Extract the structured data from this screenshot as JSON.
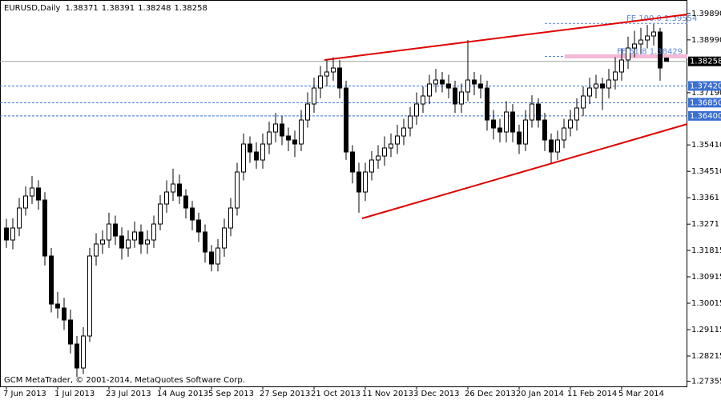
{
  "chart_data": {
    "type": "candlestick",
    "title": "EURUSD,Daily",
    "footer": "GCM MetaTrader, © 2001-2014, MetaQuotes Software Corp.",
    "open": [
      1.32578,
      1.32169,
      1.32578,
      1.3326,
      1.33669,
      1.33942,
      1.33532,
      1.31624,
      1.29987,
      1.29851,
      1.29442,
      1.28624,
      1.27806,
      1.28897,
      1.31624,
      1.32033,
      1.32169,
      1.32714,
      1.32305,
      1.31896,
      1.32169,
      1.32442,
      1.32033,
      1.32169,
      1.32714,
      1.33396,
      1.33805,
      1.34078,
      1.33669,
      1.3326,
      1.32851,
      1.32442,
      1.3176,
      1.31351,
      1.31896,
      1.32578,
      1.3326,
      1.34487,
      1.35441,
      1.35169,
      1.34896,
      1.35441,
      1.3585,
      1.36123,
      1.35714,
      1.35578,
      1.35441,
      1.36259,
      1.36805,
      1.3735,
      1.37759,
      1.37896,
      1.38032,
      1.3735,
      1.35169,
      1.34487,
      1.33805,
      1.34487,
      1.34896,
      1.35032,
      1.35305,
      1.35441,
      1.35714,
      1.35987,
      1.36396,
      1.36805,
      1.37078,
      1.37487,
      1.37623,
      1.37487,
      1.3735,
      1.36805,
      1.37214,
      1.37623,
      1.37487,
      1.3735,
      1.36259,
      1.35987,
      1.3585,
      1.36532,
      1.3585,
      1.35441,
      1.36259,
      1.36805,
      1.36259,
      1.35578,
      1.35169,
      1.35578,
      1.35987,
      1.36259,
      1.36669,
      1.37078,
      1.3735,
      1.37487,
      1.3735,
      1.37623,
      1.37896,
      1.38305,
      1.38714,
      1.3885,
      1.38986,
      1.39123,
      1.39259,
      1.38371
    ],
    "high": [
      1.3289,
      1.3291,
      1.336,
      1.34,
      1.3435,
      1.342,
      1.338,
      1.319,
      1.304,
      1.302,
      1.298,
      1.289,
      1.292,
      1.319,
      1.324,
      1.325,
      1.331,
      1.33,
      1.326,
      1.325,
      1.328,
      1.327,
      1.325,
      1.33,
      1.337,
      1.342,
      1.346,
      1.344,
      1.339,
      1.335,
      1.331,
      1.327,
      1.32,
      1.322,
      1.329,
      1.336,
      1.348,
      1.358,
      1.357,
      1.355,
      1.358,
      1.362,
      1.365,
      1.364,
      1.36,
      1.359,
      1.366,
      1.372,
      1.377,
      1.381,
      1.383,
      1.384,
      1.383,
      1.376,
      1.354,
      1.348,
      1.348,
      1.352,
      1.354,
      1.357,
      1.358,
      1.361,
      1.363,
      1.367,
      1.372,
      1.374,
      1.378,
      1.38,
      1.379,
      1.378,
      1.376,
      1.375,
      1.38986,
      1.379,
      1.378,
      1.376,
      1.366,
      1.363,
      1.369,
      1.368,
      1.361,
      1.366,
      1.371,
      1.37,
      1.365,
      1.358,
      1.359,
      1.363,
      1.366,
      1.37,
      1.374,
      1.377,
      1.378,
      1.377,
      1.38,
      1.384,
      1.387,
      1.391,
      1.393,
      1.394,
      1.395,
      1.39532,
      1.394,
      1.38391
    ],
    "low": [
      1.319,
      1.3185,
      1.323,
      1.33,
      1.334,
      1.332,
      1.313,
      1.297,
      1.295,
      1.291,
      1.283,
      1.275,
      1.276,
      1.287,
      1.313,
      1.317,
      1.319,
      1.32,
      1.315,
      1.316,
      1.319,
      1.317,
      1.317,
      1.319,
      1.325,
      1.331,
      1.335,
      1.334,
      1.329,
      1.325,
      1.321,
      1.314,
      1.311,
      1.311,
      1.316,
      1.323,
      1.33,
      1.342,
      1.348,
      1.346,
      1.346,
      1.351,
      1.355,
      1.354,
      1.352,
      1.35,
      1.352,
      1.36,
      1.365,
      1.37,
      1.374,
      1.376,
      1.37,
      1.349,
      1.341,
      1.331,
      1.335,
      1.342,
      1.346,
      1.347,
      1.35,
      1.351,
      1.354,
      1.357,
      1.361,
      1.365,
      1.368,
      1.372,
      1.372,
      1.37,
      1.365,
      1.365,
      1.369,
      1.371,
      1.37,
      1.359,
      1.356,
      1.355,
      1.355,
      1.355,
      1.351,
      1.352,
      1.36,
      1.36,
      1.352,
      1.348,
      1.349,
      1.353,
      1.357,
      1.359,
      1.364,
      1.368,
      1.37,
      1.366,
      1.37,
      1.373,
      1.376,
      1.38,
      1.384,
      1.385,
      1.387,
      1.388,
      1.376,
      1.38248
    ],
    "close": [
      1.32169,
      1.32578,
      1.3326,
      1.33669,
      1.33942,
      1.33532,
      1.31624,
      1.29987,
      1.29851,
      1.29442,
      1.28624,
      1.27806,
      1.28897,
      1.31624,
      1.32033,
      1.32169,
      1.32714,
      1.32305,
      1.31896,
      1.32169,
      1.32442,
      1.32033,
      1.32169,
      1.32714,
      1.33396,
      1.33805,
      1.34078,
      1.33669,
      1.3326,
      1.32851,
      1.32442,
      1.3176,
      1.31351,
      1.31896,
      1.32578,
      1.3326,
      1.34487,
      1.35441,
      1.35169,
      1.34896,
      1.35441,
      1.3585,
      1.36123,
      1.35714,
      1.35578,
      1.35441,
      1.36259,
      1.36805,
      1.3735,
      1.37759,
      1.37896,
      1.38032,
      1.3735,
      1.35169,
      1.34487,
      1.33805,
      1.34487,
      1.34896,
      1.35032,
      1.35305,
      1.35441,
      1.35714,
      1.35987,
      1.36396,
      1.36805,
      1.37078,
      1.37487,
      1.37623,
      1.37487,
      1.3735,
      1.36805,
      1.37214,
      1.37623,
      1.37487,
      1.3735,
      1.36259,
      1.35987,
      1.3585,
      1.36532,
      1.3585,
      1.35441,
      1.36259,
      1.36805,
      1.36259,
      1.35578,
      1.35169,
      1.35578,
      1.35987,
      1.36259,
      1.36669,
      1.37078,
      1.3735,
      1.37487,
      1.3735,
      1.37623,
      1.37896,
      1.38305,
      1.38714,
      1.3885,
      1.38986,
      1.39123,
      1.39259,
      1.38032,
      1.38258
    ],
    "bull_color": "#ffffff",
    "bear_color": "#000000",
    "xlim": [
      -1,
      106.25
    ],
    "ylim": [
      1.27179,
      1.4035
    ],
    "xticks": [
      {
        "value": 0,
        "label": "7 Jun 2013"
      },
      {
        "value": 8,
        "label": "1 Jul 2013"
      },
      {
        "value": 16,
        "label": "23 Jul 2013"
      },
      {
        "value": 24,
        "label": "14 Aug 2013"
      },
      {
        "value": 32,
        "label": "5 Sep 2013"
      },
      {
        "value": 40,
        "label": "27 Sep 2013"
      },
      {
        "value": 48,
        "label": "21 Oct 2013"
      },
      {
        "value": 56,
        "label": "11 Nov 2013"
      },
      {
        "value": 64,
        "label": "3 Dec 2013"
      },
      {
        "value": 72,
        "label": "26 Dec 2013"
      },
      {
        "value": 80,
        "label": "20 Jan 2014"
      },
      {
        "value": 88,
        "label": "11 Feb 2014"
      },
      {
        "value": 96,
        "label": "5 Mar 2014"
      }
    ],
    "yticks": [
      {
        "value": 1.3989,
        "label": "1.39890"
      },
      {
        "value": 1.3899,
        "label": "1.38990"
      },
      {
        "value": 1.3719,
        "label": "1.37190"
      },
      {
        "value": 1.3541,
        "label": "1.35410"
      },
      {
        "value": 1.3451,
        "label": "1.34510"
      },
      1.3361,
      1.3271,
      1.31815,
      1.30915,
      1.30015,
      1.29115,
      1.28215,
      1.27355
    ],
    "trendlines": [
      {
        "color": "#e00000",
        "x": [
          49.6,
          106.25
        ],
        "y": [
          1.38305,
          1.39859
        ]
      },
      {
        "color": "#e00000",
        "x": [
          55.5,
          106.25
        ],
        "y": [
          1.32906,
          1.36123
        ]
      }
    ],
    "levels": [
      {
        "value": 1.3742,
        "label": "1.37420"
      },
      {
        "value": 1.3685,
        "label": "1.36850"
      },
      {
        "value": 1.364,
        "label": "1.36400"
      }
    ],
    "level_color": "#3a6fd0",
    "fib_levels": [
      {
        "value": 1.39554,
        "label": "FE 100.0 1.39554"
      },
      {
        "value": 1.38429,
        "label": "FE 61.8 1.38429"
      }
    ],
    "fib_color": "#5f86d8"
  }
}
